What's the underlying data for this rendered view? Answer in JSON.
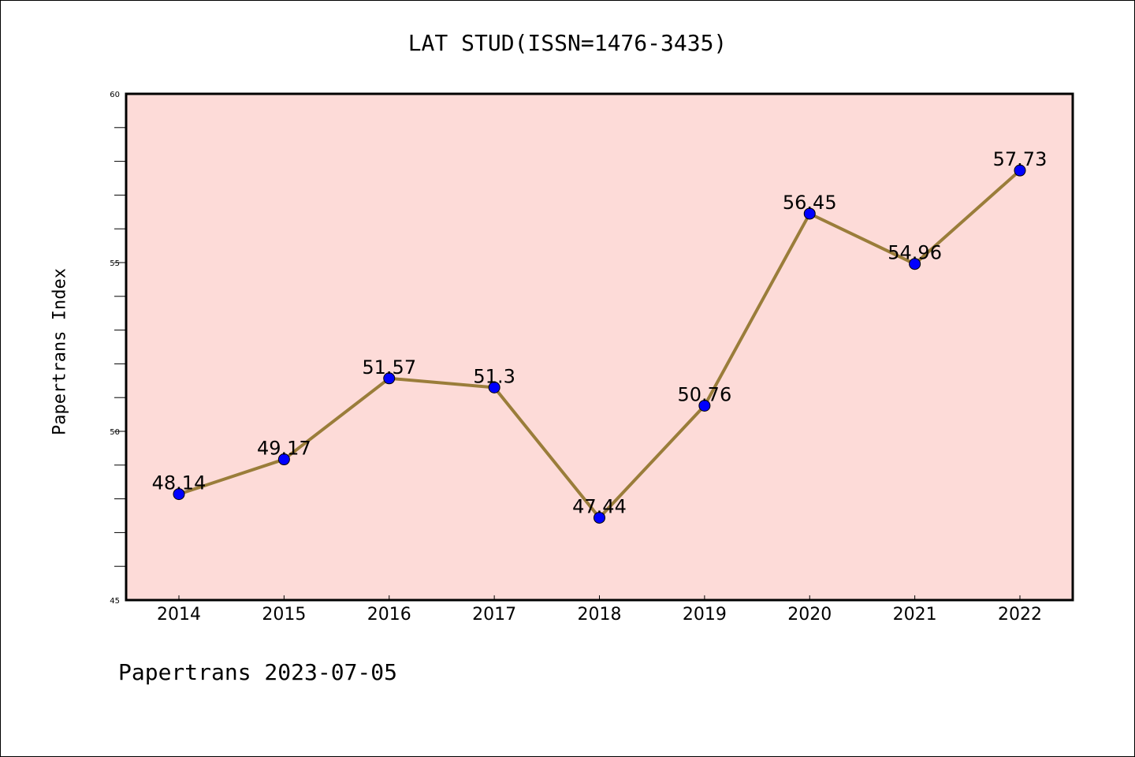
{
  "chart_data": {
    "type": "line",
    "title": "LAT STUD(ISSN=1476-3435)",
    "xlabel": "",
    "ylabel": "Papertrans Index",
    "categories": [
      "2014",
      "2015",
      "2016",
      "2017",
      "2018",
      "2019",
      "2020",
      "2021",
      "2022"
    ],
    "values": [
      48.14,
      49.17,
      51.57,
      51.3,
      47.44,
      50.76,
      56.45,
      54.96,
      57.73
    ],
    "data_labels": [
      "48.14",
      "49.17",
      "51.57",
      "51.3",
      "47.44",
      "50.76",
      "56.45",
      "54.96",
      "57.73"
    ],
    "ylim": [
      45,
      60
    ],
    "yticks": [
      "45",
      "50",
      "55",
      "60"
    ],
    "grid": false,
    "colors": {
      "background": "#fddbd8",
      "line": "#9a7d3a",
      "marker": "#0000ff"
    }
  },
  "footer": "Papertrans 2023-07-05"
}
